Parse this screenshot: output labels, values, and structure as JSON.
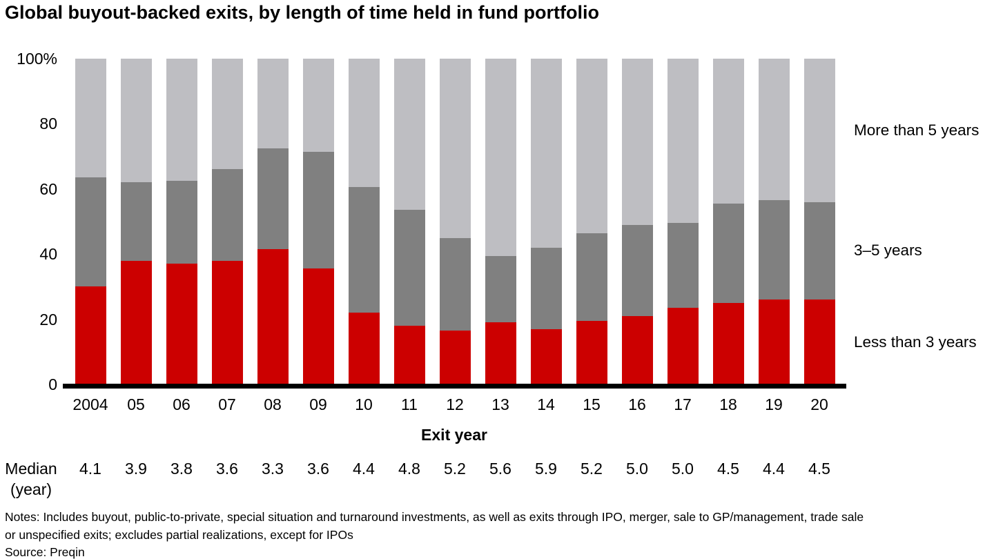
{
  "title": "Global buyout-backed exits, by length of time held in fund portfolio",
  "chart_data": {
    "type": "bar",
    "subtype": "100_percent_stacked",
    "title": "Global buyout-backed exits, by length of time held in fund portfolio",
    "xlabel": "Exit year",
    "ylabel": "",
    "ylim": [
      0,
      100
    ],
    "grid": false,
    "legend_position": "right-of-last-bar",
    "y_ticks": [
      {
        "value": 100,
        "label": "100%"
      },
      {
        "value": 80,
        "label": "80"
      },
      {
        "value": 60,
        "label": "60"
      },
      {
        "value": 40,
        "label": "40"
      },
      {
        "value": 20,
        "label": "20"
      },
      {
        "value": 0,
        "label": "0"
      }
    ],
    "categories": [
      "2004",
      "05",
      "06",
      "07",
      "08",
      "09",
      "10",
      "11",
      "12",
      "13",
      "14",
      "15",
      "16",
      "17",
      "18",
      "19",
      "20"
    ],
    "series": [
      {
        "name": "Less than 3 years",
        "color": "#CC0000",
        "values": [
          30,
          38,
          37,
          38,
          41.5,
          35.5,
          22,
          18,
          16.5,
          19,
          17,
          19.5,
          21,
          23.5,
          25,
          26,
          26
        ]
      },
      {
        "name": "3–5 years",
        "color": "#808080",
        "values": [
          33.5,
          24,
          25.5,
          28,
          31,
          36,
          38.5,
          35.5,
          28.5,
          20.5,
          25,
          27,
          28,
          26,
          30.5,
          30.5,
          30
        ]
      },
      {
        "name": "More than 5 years",
        "color": "#BEBEC2",
        "values": [
          36.5,
          38,
          37.5,
          34,
          27.5,
          28.5,
          39.5,
          46.5,
          55,
          60.5,
          58,
          53.5,
          51,
          50.5,
          44.5,
          43.5,
          44
        ]
      }
    ],
    "median_row": {
      "label_line1": "Median",
      "label_line2": "(year)",
      "values": [
        "4.1",
        "3.9",
        "3.8",
        "3.6",
        "3.3",
        "3.6",
        "4.4",
        "4.8",
        "5.2",
        "5.6",
        "5.9",
        "5.2",
        "5.0",
        "5.0",
        "4.5",
        "4.4",
        "4.5"
      ]
    }
  },
  "notes": {
    "line1": "Notes: Includes buyout, public-to-private, special situation and turnaround investments, as well as exits through IPO, merger, sale to GP/management, trade sale",
    "line2": "or unspecified exits; excludes partial realizations, except for IPOs",
    "source": "Source: Preqin"
  },
  "colors": {
    "less_than_3_years": "#CC0000",
    "three_to_five_years": "#808080",
    "more_than_5_years": "#BEBEC2",
    "axis_line": "#000000",
    "text": "#000000"
  }
}
